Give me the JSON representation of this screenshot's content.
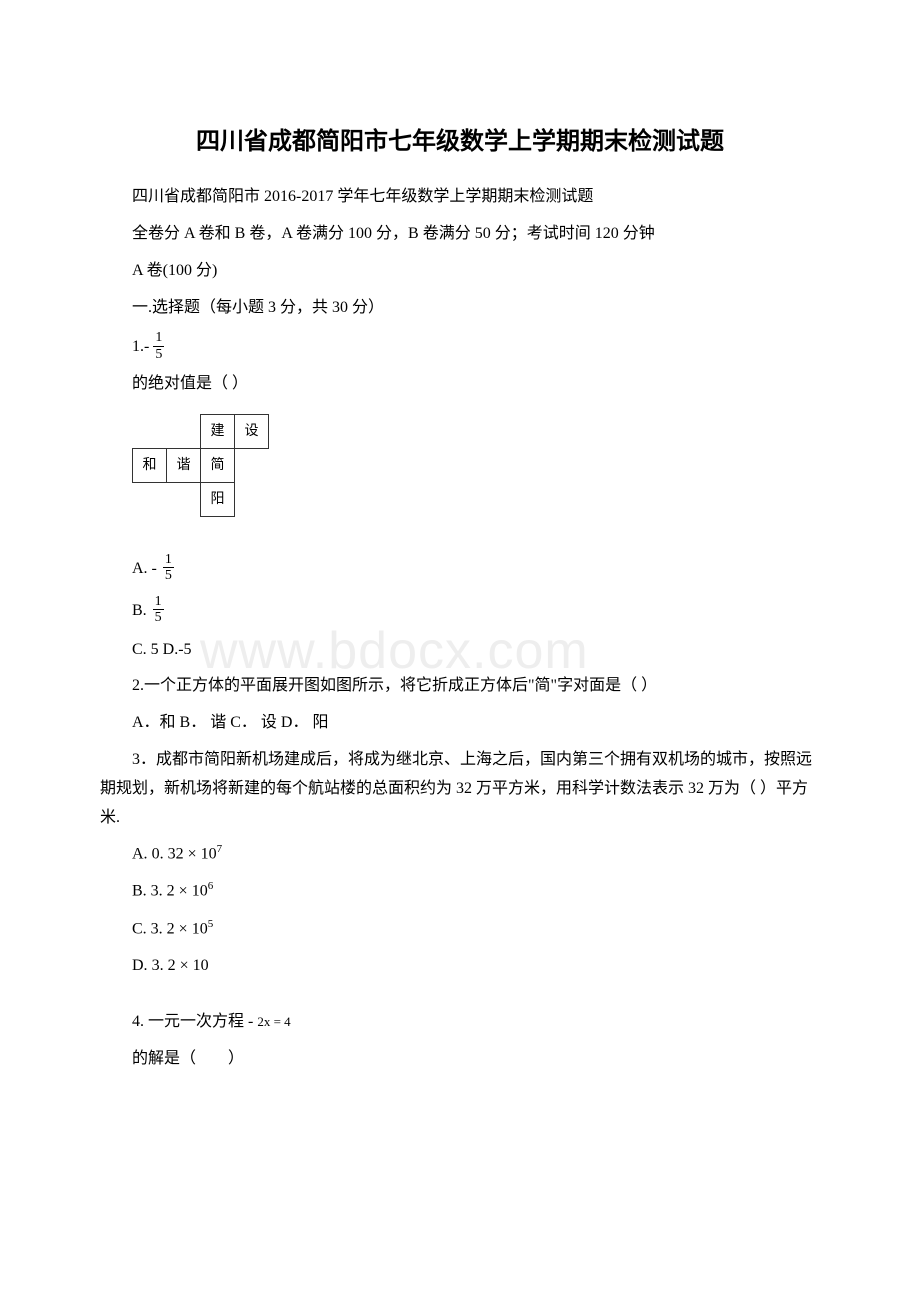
{
  "watermark": "www.bdocx.com",
  "title": "四川省成都简阳市七年级数学上学期期末检测试题",
  "subtitle": "四川省成都简阳市 2016-2017 学年七年级数学上学期期末检测试题",
  "instructions1": "全卷分 A 卷和 B 卷，A 卷满分 100 分，B 卷满分 50 分；考试时间 120 分钟",
  "sectionA": "A 卷(100 分)",
  "section1": "一.选择题（每小题 3 分，共 30 分）",
  "q1": {
    "prefix": "1.-",
    "frac_num": "1",
    "frac_den": "5",
    "tail": "的绝对值是（ ）",
    "net": {
      "r1c3": "建",
      "r1c4": "设",
      "r2c1": "和",
      "r2c2": "谐",
      "r2c3": "简",
      "r3c3": "阳"
    },
    "optA_prefix": "A. -",
    "optA_num": "1",
    "optA_den": "5",
    "optB_prefix": "B.",
    "optB_num": "1",
    "optB_den": "5",
    "optCD": "C. 5 D.-5"
  },
  "q2": {
    "text": "2.一个正方体的平面展开图如图所示，将它折成正方体后\"简\"字对面是（  ）",
    "opts": "A．和 B． 谐 C． 设 D． 阳"
  },
  "q3": {
    "text": "3．成都市简阳新机场建成后，将成为继北京、上海之后，国内第三个拥有双机场的城市，按照远期规划，新机场将新建的每个航站楼的总面积约为 32 万平方米，用科学计数法表示 32 万为（ ）平方米.",
    "optA_label": "A.",
    "optA_val": "0. 32 × 10",
    "optA_exp": "7",
    "optB_label": "B.",
    "optB_val": "3. 2 × 10",
    "optB_exp": "6",
    "optC_label": "C.",
    "optC_val": "3. 2 × 10",
    "optC_exp": "5",
    "optD_label": "D.",
    "optD_val": "3. 2 × 10"
  },
  "q4": {
    "line1a": "4. 一元一次方程 -",
    "line1b": "2x = 4",
    "line2": "的解是（　　）"
  }
}
